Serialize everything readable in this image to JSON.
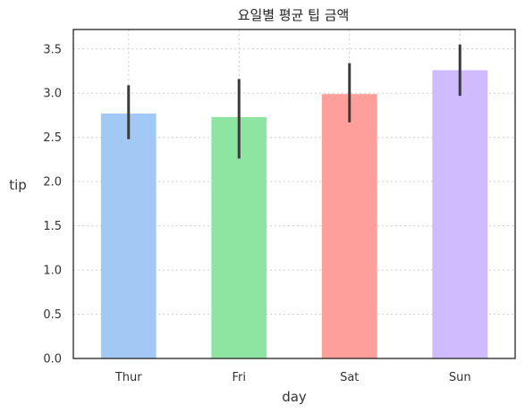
{
  "chart_data": {
    "type": "bar",
    "title": "요일별 평균 팁 금액",
    "xlabel": "day",
    "ylabel": "tip",
    "categories": [
      "Thur",
      "Fri",
      "Sat",
      "Sun"
    ],
    "values": [
      2.77,
      2.73,
      2.99,
      3.26
    ],
    "error_bars": [
      {
        "low": 2.48,
        "high": 3.09
      },
      {
        "low": 2.26,
        "high": 3.16
      },
      {
        "low": 2.67,
        "high": 3.34
      },
      {
        "low": 2.97,
        "high": 3.55
      }
    ],
    "colors": [
      "#a1c9f4",
      "#8de5a1",
      "#ff9f9b",
      "#d0bbff"
    ],
    "ylim": [
      0,
      3.72
    ],
    "yticks": [
      "0.0",
      "0.5",
      "1.0",
      "1.5",
      "2.0",
      "2.5",
      "3.0",
      "3.5"
    ],
    "grid": true
  }
}
